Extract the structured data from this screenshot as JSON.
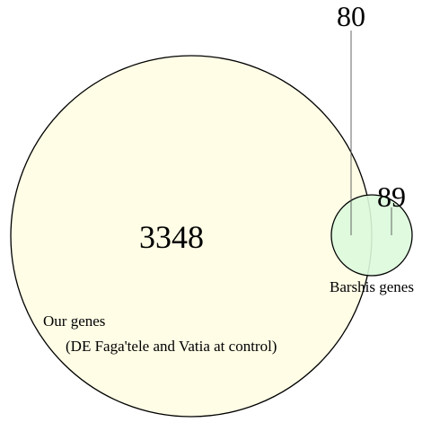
{
  "venn": {
    "sets": [
      {
        "label": "Our genes",
        "sublabel": "(DE Faga'tele and Vatia at control)",
        "fill": "#fffde6"
      },
      {
        "label": "Barshis genes",
        "fill": "#dcfadc"
      }
    ],
    "regions": {
      "only_ours": "3348",
      "overlap": "80",
      "only_barshis": "89"
    },
    "colors": {
      "stroke": "#000000",
      "leader_line": "#555555"
    }
  }
}
